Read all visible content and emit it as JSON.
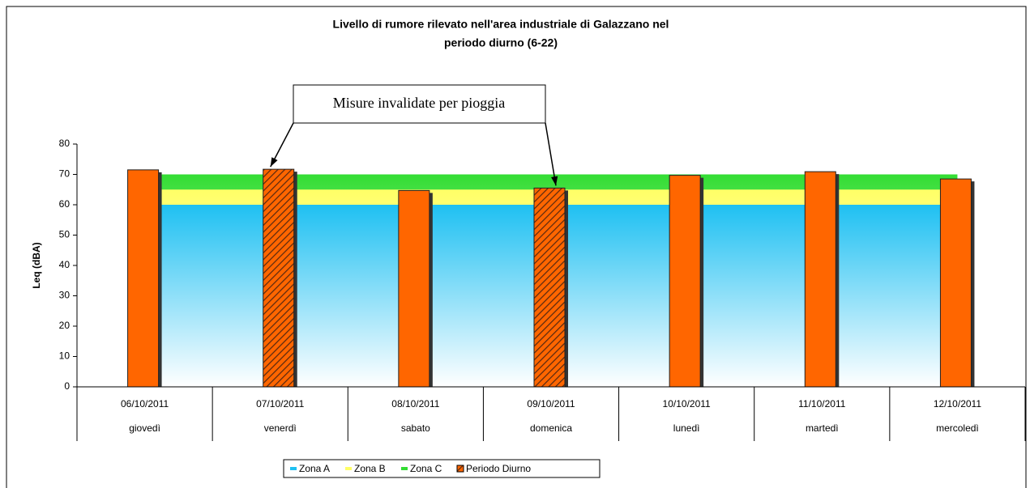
{
  "chart_data": {
    "type": "bar",
    "title": [
      "Livello di rumore rilevato nell'area industriale di Galazzano nel",
      "periodo diurno (6-22)"
    ],
    "ylabel": "Leq (dBA)",
    "annotation": "Misure invalidate per pioggia",
    "categories": [
      "06/10/2011",
      "07/10/2011",
      "08/10/2011",
      "09/10/2011",
      "10/10/2011",
      "11/10/2011",
      "12/10/2011"
    ],
    "weekdays": [
      "giovedì",
      "venerdì",
      "sabato",
      "domenica",
      "lunedì",
      "martedì",
      "mercoledì"
    ],
    "series": [
      {
        "name": "Zona A",
        "type": "area",
        "color": "#1ec0f2",
        "values": [
          60,
          60,
          60,
          60,
          60,
          60,
          60
        ]
      },
      {
        "name": "Zona B",
        "type": "area",
        "color": "#ffff66",
        "values": [
          65,
          65,
          65,
          65,
          65,
          65,
          65
        ]
      },
      {
        "name": "Zona C",
        "type": "area",
        "color": "#33dd33",
        "values": [
          70,
          70,
          70,
          70,
          70,
          70,
          70
        ]
      },
      {
        "name": "Periodo Diurno",
        "type": "bar",
        "color": "#ff6600",
        "values": [
          71.5,
          71.7,
          64.7,
          65.5,
          69.7,
          70.9,
          68.5
        ],
        "hatched": [
          false,
          true,
          false,
          true,
          false,
          false,
          false
        ]
      }
    ],
    "ylim": [
      0,
      80
    ],
    "yticks": [
      0,
      10,
      20,
      30,
      40,
      50,
      60,
      70,
      80
    ]
  }
}
